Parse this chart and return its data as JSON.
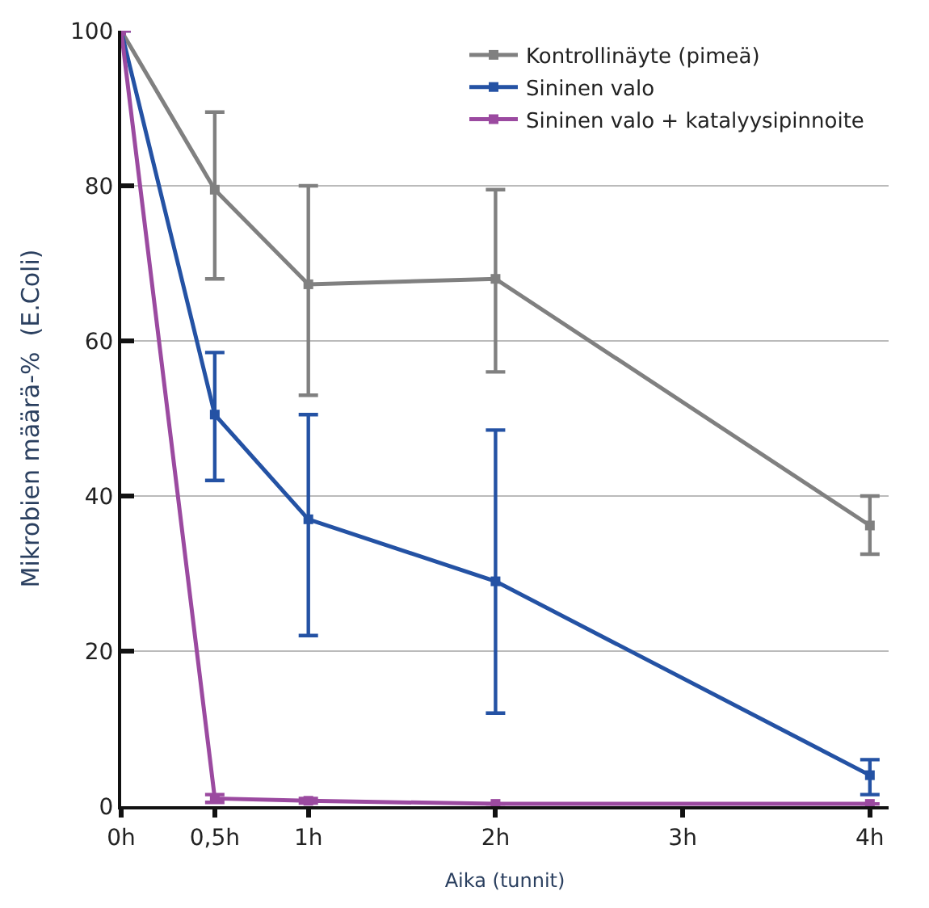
{
  "chart_data": {
    "type": "line",
    "xlabel": "Aika (tunnit)",
    "ylabel": "Mikrobien määrä-%  (E.Coli)",
    "x": [
      0,
      0.5,
      1,
      2,
      4
    ],
    "xlim": [
      0,
      4.1
    ],
    "xticks": [
      {
        "value": 0,
        "label": "0h"
      },
      {
        "value": 0.5,
        "label": "0,5h"
      },
      {
        "value": 1,
        "label": "1h"
      },
      {
        "value": 2,
        "label": "2h"
      },
      {
        "value": 3,
        "label": "3h"
      },
      {
        "value": 4,
        "label": "4h"
      }
    ],
    "ylim": [
      0,
      100
    ],
    "yticks": [
      0,
      20,
      40,
      60,
      80,
      100
    ],
    "grid": "y",
    "legend": "top right",
    "marker": "square",
    "line_style": "solid",
    "series": [
      {
        "name": "Kontrollinäyte (pimeä)",
        "color": "#808080",
        "values": [
          100,
          79.5,
          67.3,
          68,
          36.2
        ],
        "errors": [
          null,
          [
            68,
            89.5
          ],
          [
            53,
            80
          ],
          [
            56,
            79.5
          ],
          [
            32.5,
            40
          ]
        ]
      },
      {
        "name": "Sininen valo",
        "color": "#2452a4",
        "values": [
          100,
          50.5,
          37,
          29,
          4
        ],
        "errors": [
          null,
          [
            42,
            58.5
          ],
          [
            22,
            50.5
          ],
          [
            12,
            48.5
          ],
          [
            1.5,
            6
          ]
        ]
      },
      {
        "name": "Sininen valo + katalyysipinnoite",
        "color": "#9b4aa0",
        "values": [
          100,
          1,
          0.7,
          0.3,
          0.3
        ],
        "errors": [
          null,
          [
            0.5,
            1.5
          ],
          [
            0.4,
            1
          ],
          null,
          null
        ]
      }
    ]
  }
}
